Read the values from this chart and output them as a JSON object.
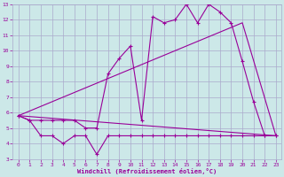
{
  "xlabel": "Windchill (Refroidissement éolien,°C)",
  "background_color": "#cce8e8",
  "grid_color": "#aaaacc",
  "line_color": "#990099",
  "xlim": [
    -0.5,
    23.5
  ],
  "ylim": [
    3,
    13
  ],
  "xticks": [
    0,
    1,
    2,
    3,
    4,
    5,
    6,
    7,
    8,
    9,
    10,
    11,
    12,
    13,
    14,
    15,
    16,
    17,
    18,
    19,
    20,
    21,
    22,
    23
  ],
  "yticks": [
    3,
    4,
    5,
    6,
    7,
    8,
    9,
    10,
    11,
    12,
    13
  ],
  "series1_x": [
    0,
    1,
    2,
    3,
    4,
    5,
    6,
    7,
    8,
    9,
    10,
    11,
    12,
    13,
    14,
    15,
    16,
    17,
    18,
    19,
    20,
    21,
    22,
    23
  ],
  "series1_y": [
    5.8,
    5.5,
    4.5,
    4.5,
    4.0,
    4.5,
    4.5,
    3.3,
    4.5,
    4.5,
    4.5,
    4.5,
    4.5,
    4.5,
    4.5,
    4.5,
    4.5,
    4.5,
    4.5,
    4.5,
    4.5,
    4.5,
    4.5,
    4.5
  ],
  "series2_x": [
    0,
    1,
    2,
    3,
    4,
    5,
    6,
    7,
    8,
    9,
    10,
    11,
    12,
    13,
    14,
    15,
    16,
    17,
    18,
    19,
    20,
    21,
    22,
    23
  ],
  "series2_y": [
    5.8,
    5.5,
    5.5,
    5.5,
    5.5,
    5.5,
    5.0,
    5.0,
    8.5,
    9.5,
    10.3,
    5.5,
    12.2,
    11.8,
    12.0,
    13.0,
    11.8,
    13.0,
    12.5,
    11.8,
    9.3,
    6.7,
    4.5,
    4.5
  ],
  "series3_x": [
    0,
    23
  ],
  "series3_y": [
    5.8,
    4.5
  ],
  "series4_x": [
    0,
    20,
    23
  ],
  "series4_y": [
    5.8,
    11.8,
    4.5
  ]
}
